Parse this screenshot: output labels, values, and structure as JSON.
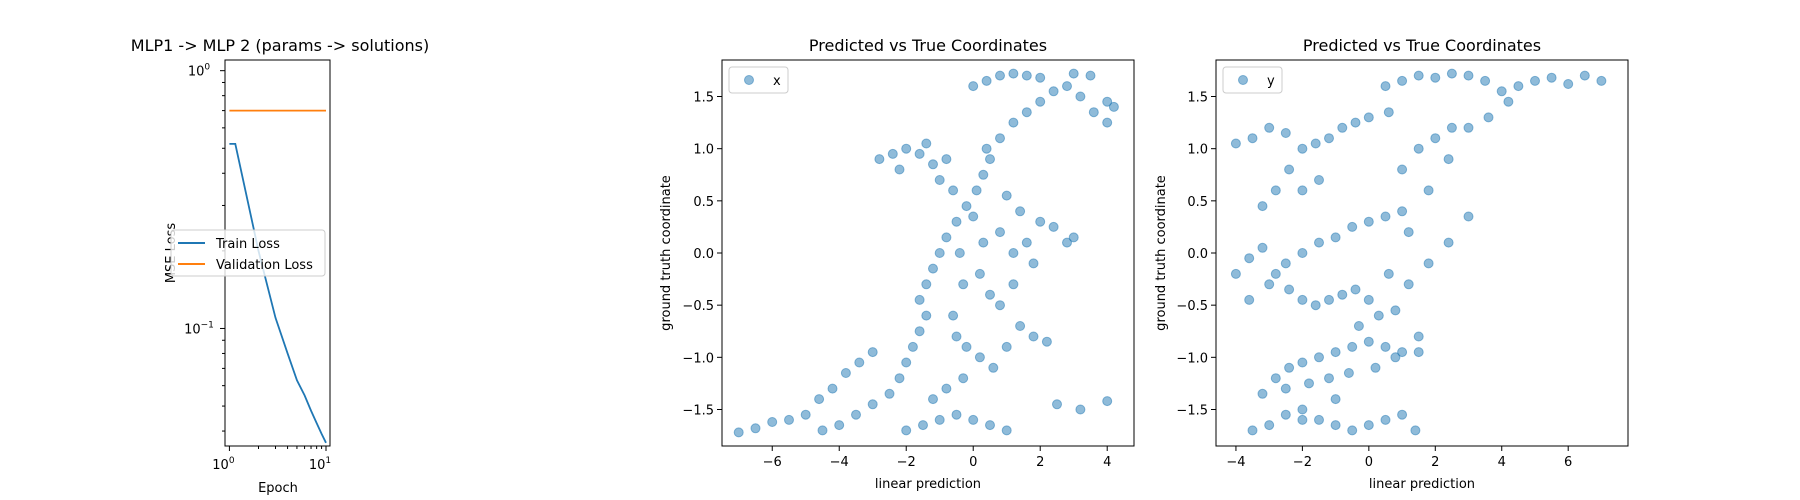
{
  "chart_data": [
    {
      "type": "line",
      "title": "MLP1 -> MLP 2 (params -> solutions)",
      "xlabel": "Epoch",
      "ylabel": "MSE Loss",
      "xscale": "log",
      "yscale": "log",
      "xlim": [
        0.9,
        11
      ],
      "ylim": [
        0.035,
        1.1
      ],
      "xticks": [
        {
          "value": 1,
          "label_base": "10",
          "label_exp": "0"
        },
        {
          "value": 10,
          "label_base": "10",
          "label_exp": "1"
        }
      ],
      "yticks": [
        {
          "value": 0.1,
          "label_base": "10",
          "label_exp": "−1"
        },
        {
          "value": 1,
          "label_base": "10",
          "label_exp": "0"
        }
      ],
      "legend_position": "center-left",
      "series": [
        {
          "name": "Train Loss",
          "color": "#1f77b4",
          "x": [
            1,
            1.15,
            2,
            3,
            4,
            5,
            6,
            7,
            8,
            9,
            10
          ],
          "y": [
            0.52,
            0.52,
            0.2,
            0.11,
            0.08,
            0.063,
            0.055,
            0.048,
            0.043,
            0.039,
            0.036
          ]
        },
        {
          "name": "Validation Loss",
          "color": "#ff7f0e",
          "x": [
            1,
            2,
            3,
            4,
            5,
            6,
            7,
            8,
            9,
            10
          ],
          "y": [
            0.7,
            0.7,
            0.7,
            0.7,
            0.7,
            0.7,
            0.7,
            0.7,
            0.7,
            0.7
          ]
        }
      ]
    },
    {
      "type": "scatter",
      "title": "Predicted vs True Coordinates",
      "xlabel": "linear prediction",
      "ylabel": "ground truth coordinate",
      "xlim": [
        -7.5,
        4.8
      ],
      "ylim": [
        -1.85,
        1.85
      ],
      "xticks": [
        {
          "value": -6,
          "label": "−6"
        },
        {
          "value": -4,
          "label": "−4"
        },
        {
          "value": -2,
          "label": "−2"
        },
        {
          "value": 0,
          "label": "0"
        },
        {
          "value": 2,
          "label": "2"
        },
        {
          "value": 4,
          "label": "4"
        }
      ],
      "yticks": [
        {
          "value": -1.5,
          "label": "−1.5"
        },
        {
          "value": -1.0,
          "label": "−1.0"
        },
        {
          "value": -0.5,
          "label": "−0.5"
        },
        {
          "value": 0.0,
          "label": "0.0"
        },
        {
          "value": 0.5,
          "label": "0.5"
        },
        {
          "value": 1.0,
          "label": "1.0"
        },
        {
          "value": 1.5,
          "label": "1.5"
        }
      ],
      "legend_position": "top-left",
      "series": [
        {
          "name": "x",
          "color": "#1f77b4",
          "alpha": 0.5,
          "points": [
            [
              -7.0,
              -1.72
            ],
            [
              -6.5,
              -1.68
            ],
            [
              -6.0,
              -1.62
            ],
            [
              -5.5,
              -1.6
            ],
            [
              -5.0,
              -1.55
            ],
            [
              -4.6,
              -1.4
            ],
            [
              -4.2,
              -1.3
            ],
            [
              -3.8,
              -1.15
            ],
            [
              -3.4,
              -1.05
            ],
            [
              -3.0,
              -0.95
            ],
            [
              -4.5,
              -1.7
            ],
            [
              -4.0,
              -1.65
            ],
            [
              -3.5,
              -1.55
            ],
            [
              -3.0,
              -1.45
            ],
            [
              -2.5,
              -1.35
            ],
            [
              -2.2,
              -1.2
            ],
            [
              -2.0,
              -1.05
            ],
            [
              -1.8,
              -0.9
            ],
            [
              -1.6,
              -0.75
            ],
            [
              -1.4,
              -0.6
            ],
            [
              -2.0,
              -1.7
            ],
            [
              -1.5,
              -1.65
            ],
            [
              -1.0,
              -1.6
            ],
            [
              -0.5,
              -1.55
            ],
            [
              0.0,
              -1.6
            ],
            [
              0.5,
              -1.65
            ],
            [
              1.0,
              -1.7
            ],
            [
              -1.2,
              -1.4
            ],
            [
              -0.8,
              -1.3
            ],
            [
              -0.3,
              -1.2
            ],
            [
              -1.6,
              -0.45
            ],
            [
              -1.4,
              -0.3
            ],
            [
              -1.2,
              -0.15
            ],
            [
              -1.0,
              0.0
            ],
            [
              -0.8,
              0.15
            ],
            [
              -0.5,
              0.3
            ],
            [
              -0.2,
              0.45
            ],
            [
              0.1,
              0.6
            ],
            [
              0.3,
              0.75
            ],
            [
              0.5,
              0.9
            ],
            [
              -0.5,
              -0.8
            ],
            [
              -0.2,
              -0.9
            ],
            [
              0.2,
              -1.0
            ],
            [
              0.6,
              -1.1
            ],
            [
              1.0,
              -0.9
            ],
            [
              1.4,
              -0.7
            ],
            [
              1.8,
              -0.8
            ],
            [
              2.2,
              -0.85
            ],
            [
              0.8,
              -0.5
            ],
            [
              1.2,
              -0.3
            ],
            [
              0.8,
              0.2
            ],
            [
              1.2,
              0.0
            ],
            [
              1.6,
              0.1
            ],
            [
              2.0,
              0.3
            ],
            [
              2.4,
              0.25
            ],
            [
              2.8,
              0.1
            ],
            [
              3.0,
              0.15
            ],
            [
              1.8,
              -0.1
            ],
            [
              1.4,
              0.4
            ],
            [
              1.0,
              0.55
            ],
            [
              0.4,
              1.0
            ],
            [
              0.8,
              1.1
            ],
            [
              1.2,
              1.25
            ],
            [
              1.6,
              1.35
            ],
            [
              2.0,
              1.45
            ],
            [
              2.4,
              1.55
            ],
            [
              2.8,
              1.6
            ],
            [
              3.2,
              1.5
            ],
            [
              3.6,
              1.35
            ],
            [
              4.0,
              1.25
            ],
            [
              0.0,
              1.6
            ],
            [
              0.4,
              1.65
            ],
            [
              0.8,
              1.7
            ],
            [
              1.2,
              1.72
            ],
            [
              1.6,
              1.7
            ],
            [
              2.0,
              1.68
            ],
            [
              3.0,
              1.72
            ],
            [
              3.5,
              1.7
            ],
            [
              4.0,
              1.45
            ],
            [
              4.2,
              1.4
            ],
            [
              -2.8,
              0.9
            ],
            [
              -2.4,
              0.95
            ],
            [
              -2.0,
              1.0
            ],
            [
              -1.6,
              0.95
            ],
            [
              -1.2,
              0.85
            ],
            [
              -0.8,
              0.9
            ],
            [
              -1.0,
              0.7
            ],
            [
              -0.6,
              0.6
            ],
            [
              -2.2,
              0.8
            ],
            [
              -1.4,
              1.05
            ],
            [
              -0.3,
              -0.3
            ],
            [
              0.2,
              -0.2
            ],
            [
              0.5,
              -0.4
            ],
            [
              -0.6,
              -0.6
            ],
            [
              0.3,
              0.1
            ],
            [
              -0.4,
              0.0
            ],
            [
              0.0,
              0.35
            ],
            [
              2.5,
              -1.45
            ],
            [
              3.2,
              -1.5
            ],
            [
              4.0,
              -1.42
            ]
          ]
        }
      ]
    },
    {
      "type": "scatter",
      "title": "Predicted vs True Coordinates",
      "xlabel": "linear prediction",
      "ylabel": "ground truth coordinate",
      "xlim": [
        -4.6,
        7.8
      ],
      "ylim": [
        -1.85,
        1.85
      ],
      "xticks": [
        {
          "value": -4,
          "label": "−4"
        },
        {
          "value": -2,
          "label": "−2"
        },
        {
          "value": 0,
          "label": "0"
        },
        {
          "value": 2,
          "label": "2"
        },
        {
          "value": 4,
          "label": "4"
        },
        {
          "value": 6,
          "label": "6"
        }
      ],
      "yticks": [
        {
          "value": -1.5,
          "label": "−1.5"
        },
        {
          "value": -1.0,
          "label": "−1.0"
        },
        {
          "value": -0.5,
          "label": "−0.5"
        },
        {
          "value": 0.0,
          "label": "0.0"
        },
        {
          "value": 0.5,
          "label": "0.5"
        },
        {
          "value": 1.0,
          "label": "1.0"
        },
        {
          "value": 1.5,
          "label": "1.5"
        }
      ],
      "legend_position": "top-left",
      "series": [
        {
          "name": "y",
          "color": "#1f77b4",
          "alpha": 0.5,
          "points": [
            [
              -3.5,
              -1.7
            ],
            [
              -3.0,
              -1.65
            ],
            [
              -2.5,
              -1.55
            ],
            [
              -2.0,
              -1.5
            ],
            [
              -1.5,
              -1.6
            ],
            [
              -1.0,
              -1.65
            ],
            [
              -0.5,
              -1.7
            ],
            [
              0.0,
              -1.65
            ],
            [
              0.5,
              -1.6
            ],
            [
              1.0,
              -1.55
            ],
            [
              -3.2,
              -1.35
            ],
            [
              -2.8,
              -1.2
            ],
            [
              -2.4,
              -1.1
            ],
            [
              -2.0,
              -1.05
            ],
            [
              -1.5,
              -1.0
            ],
            [
              -1.0,
              -0.95
            ],
            [
              -0.5,
              -0.9
            ],
            [
              0.0,
              -0.85
            ],
            [
              0.5,
              -0.9
            ],
            [
              1.0,
              -0.95
            ],
            [
              -2.5,
              -1.3
            ],
            [
              -1.8,
              -1.25
            ],
            [
              -1.2,
              -1.2
            ],
            [
              -0.6,
              -1.15
            ],
            [
              0.2,
              -1.1
            ],
            [
              0.8,
              -1.0
            ],
            [
              1.5,
              -0.95
            ],
            [
              -0.3,
              -0.7
            ],
            [
              0.3,
              -0.6
            ],
            [
              0.8,
              -0.55
            ],
            [
              -4.0,
              -0.2
            ],
            [
              -3.6,
              -0.05
            ],
            [
              -3.2,
              0.05
            ],
            [
              -2.8,
              -0.2
            ],
            [
              -2.4,
              -0.35
            ],
            [
              -2.0,
              -0.45
            ],
            [
              -1.6,
              -0.5
            ],
            [
              -1.2,
              -0.45
            ],
            [
              -0.8,
              -0.4
            ],
            [
              -0.4,
              -0.35
            ],
            [
              -3.6,
              -0.45
            ],
            [
              -3.0,
              -0.3
            ],
            [
              -2.5,
              -0.1
            ],
            [
              -2.0,
              0.0
            ],
            [
              -1.5,
              0.1
            ],
            [
              -1.0,
              0.15
            ],
            [
              -0.5,
              0.25
            ],
            [
              0.0,
              0.3
            ],
            [
              0.5,
              0.35
            ],
            [
              1.0,
              0.4
            ],
            [
              -3.2,
              0.45
            ],
            [
              -2.8,
              0.6
            ],
            [
              -2.4,
              0.8
            ],
            [
              -2.0,
              1.0
            ],
            [
              -1.6,
              1.05
            ],
            [
              -1.2,
              1.1
            ],
            [
              -0.8,
              1.2
            ],
            [
              -0.4,
              1.25
            ],
            [
              0.0,
              1.3
            ],
            [
              0.6,
              1.35
            ],
            [
              -4.0,
              1.05
            ],
            [
              -3.5,
              1.1
            ],
            [
              -3.0,
              1.2
            ],
            [
              -2.5,
              1.15
            ],
            [
              -2.0,
              0.6
            ],
            [
              -1.5,
              0.7
            ],
            [
              1.0,
              0.8
            ],
            [
              1.5,
              1.0
            ],
            [
              2.0,
              1.1
            ],
            [
              2.5,
              1.2
            ],
            [
              0.5,
              1.6
            ],
            [
              1.0,
              1.65
            ],
            [
              1.5,
              1.7
            ],
            [
              2.0,
              1.68
            ],
            [
              2.5,
              1.72
            ],
            [
              3.0,
              1.7
            ],
            [
              3.5,
              1.65
            ],
            [
              4.0,
              1.55
            ],
            [
              4.5,
              1.6
            ],
            [
              5.0,
              1.65
            ],
            [
              5.5,
              1.68
            ],
            [
              6.0,
              1.62
            ],
            [
              6.5,
              1.7
            ],
            [
              7.0,
              1.65
            ],
            [
              4.2,
              1.45
            ],
            [
              3.6,
              1.3
            ],
            [
              3.0,
              1.2
            ],
            [
              2.4,
              0.9
            ],
            [
              1.8,
              0.6
            ],
            [
              1.2,
              0.2
            ],
            [
              0.6,
              -0.2
            ],
            [
              1.2,
              -0.3
            ],
            [
              1.8,
              -0.1
            ],
            [
              2.4,
              0.1
            ],
            [
              3.0,
              0.35
            ],
            [
              0.0,
              -0.45
            ],
            [
              1.5,
              -0.8
            ],
            [
              -1.0,
              -1.4
            ],
            [
              -2.0,
              -1.6
            ],
            [
              1.4,
              -1.7
            ]
          ]
        }
      ]
    }
  ]
}
